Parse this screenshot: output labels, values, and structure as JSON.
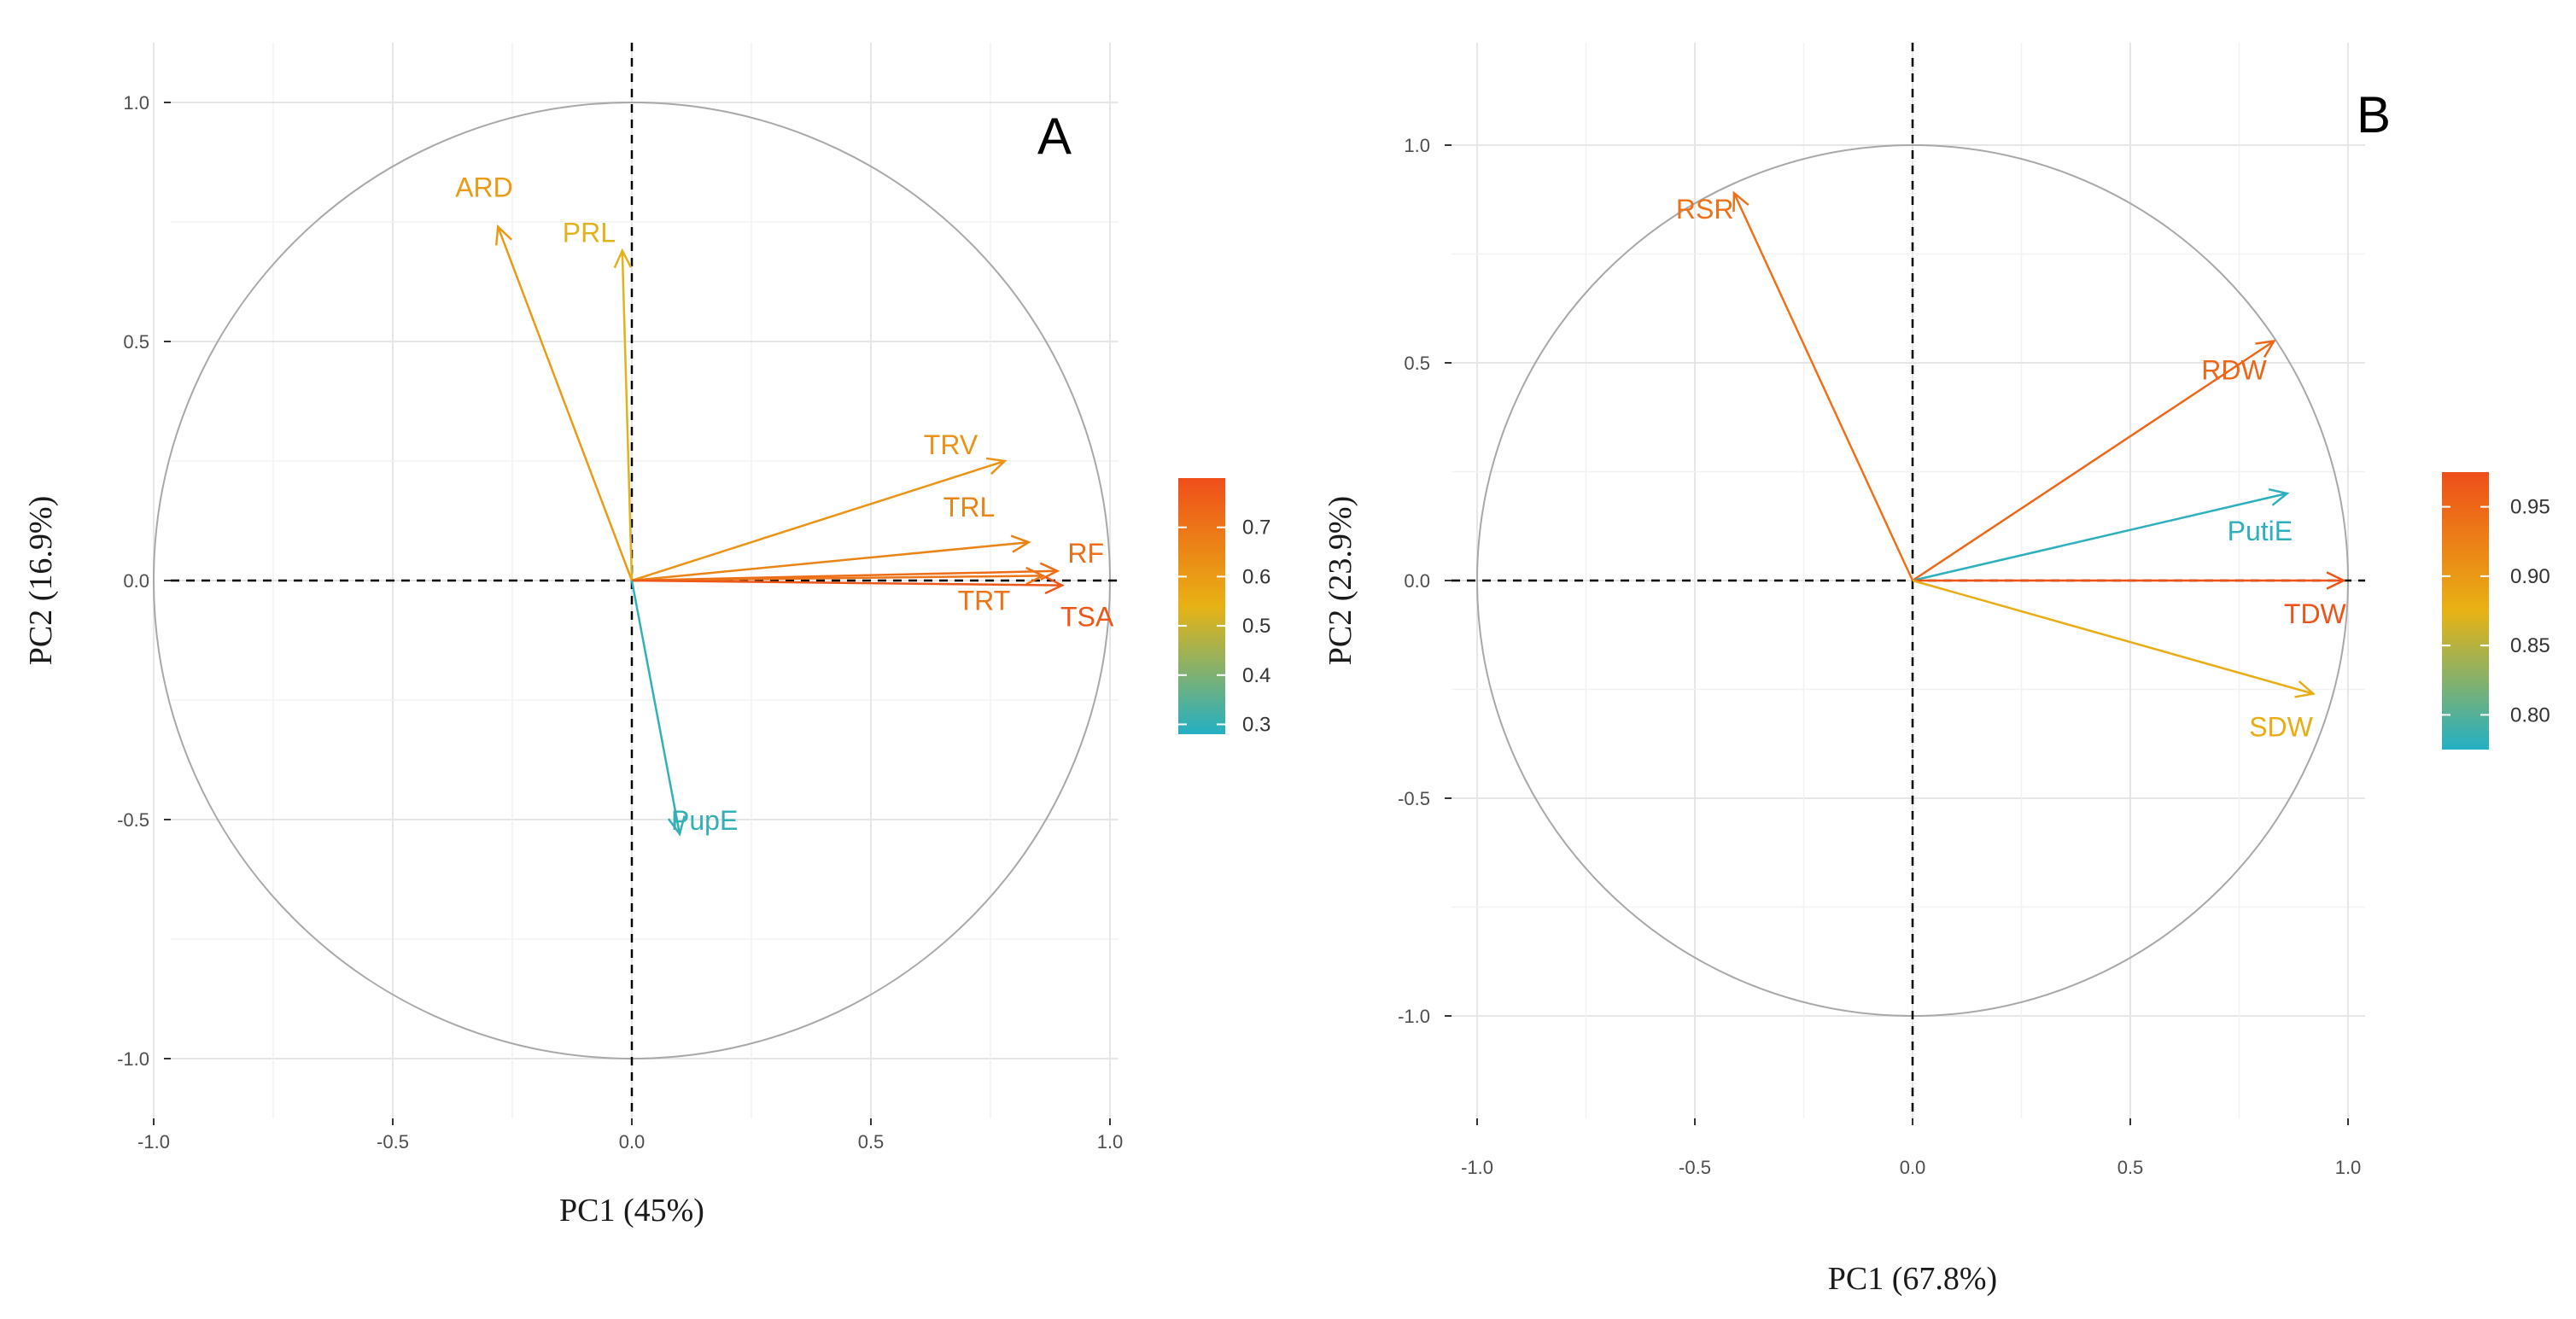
{
  "chart_data": [
    {
      "type": "pca_variable_correlation_circle",
      "panel_label": "A",
      "xlabel": "PC1 (45%)",
      "ylabel": "PC2 (16.9%)",
      "xlim": [
        -1.05,
        1.05
      ],
      "ylim": [
        -1.05,
        1.05
      ],
      "x_ticks": [
        "-1.0",
        "-0.5",
        "0.0",
        "0.5",
        "1.0"
      ],
      "y_ticks": [
        "-1.0",
        "-0.5",
        "0.0",
        "0.5",
        "1.0"
      ],
      "grid": true,
      "variables": [
        {
          "name": "ARD",
          "pc1": -0.28,
          "pc2": 0.74,
          "contrib": 0.6
        },
        {
          "name": "PRL",
          "pc1": -0.02,
          "pc2": 0.69,
          "contrib": 0.53
        },
        {
          "name": "TRV",
          "pc1": 0.78,
          "pc2": 0.25,
          "contrib": 0.62
        },
        {
          "name": "TRL",
          "pc1": 0.83,
          "pc2": 0.08,
          "contrib": 0.66
        },
        {
          "name": "RF",
          "pc1": 0.89,
          "pc2": 0.02,
          "contrib": 0.72
        },
        {
          "name": "TRT",
          "pc1": 0.86,
          "pc2": 0.01,
          "contrib": 0.7
        },
        {
          "name": "TSA",
          "pc1": 0.9,
          "pc2": -0.01,
          "contrib": 0.78
        },
        {
          "name": "PupE",
          "pc1": 0.1,
          "pc2": -0.53,
          "contrib": 0.3
        }
      ],
      "colorbar": {
        "min": 0.28,
        "max": 0.8,
        "ticks": [
          "0.7",
          "0.6",
          "0.5",
          "0.4",
          "0.3"
        ]
      }
    },
    {
      "type": "pca_variable_correlation_circle",
      "panel_label": "B",
      "xlabel": "PC1 (67.8%)",
      "ylabel": "PC2 (23.9%)",
      "xlim": [
        -1.05,
        1.05
      ],
      "ylim": [
        -1.05,
        1.05
      ],
      "x_ticks": [
        "-1.0",
        "-0.5",
        "0.0",
        "0.5",
        "1.0"
      ],
      "y_ticks": [
        "-1.0",
        "-0.5",
        "0.0",
        "0.5",
        "1.0"
      ],
      "grid": true,
      "variables": [
        {
          "name": "RSR",
          "pc1": -0.41,
          "pc2": 0.89,
          "contrib": 0.94
        },
        {
          "name": "RDW",
          "pc1": 0.83,
          "pc2": 0.55,
          "contrib": 0.95
        },
        {
          "name": "PutiE",
          "pc1": 0.86,
          "pc2": 0.2,
          "contrib": 0.78
        },
        {
          "name": "TDW",
          "pc1": 0.99,
          "pc2": 0.0,
          "contrib": 0.97
        },
        {
          "name": "SDW",
          "pc1": 0.92,
          "pc2": -0.26,
          "contrib": 0.88
        }
      ],
      "colorbar": {
        "min": 0.775,
        "max": 0.975,
        "ticks": [
          "0.95",
          "0.90",
          "0.85",
          "0.80"
        ]
      }
    }
  ]
}
